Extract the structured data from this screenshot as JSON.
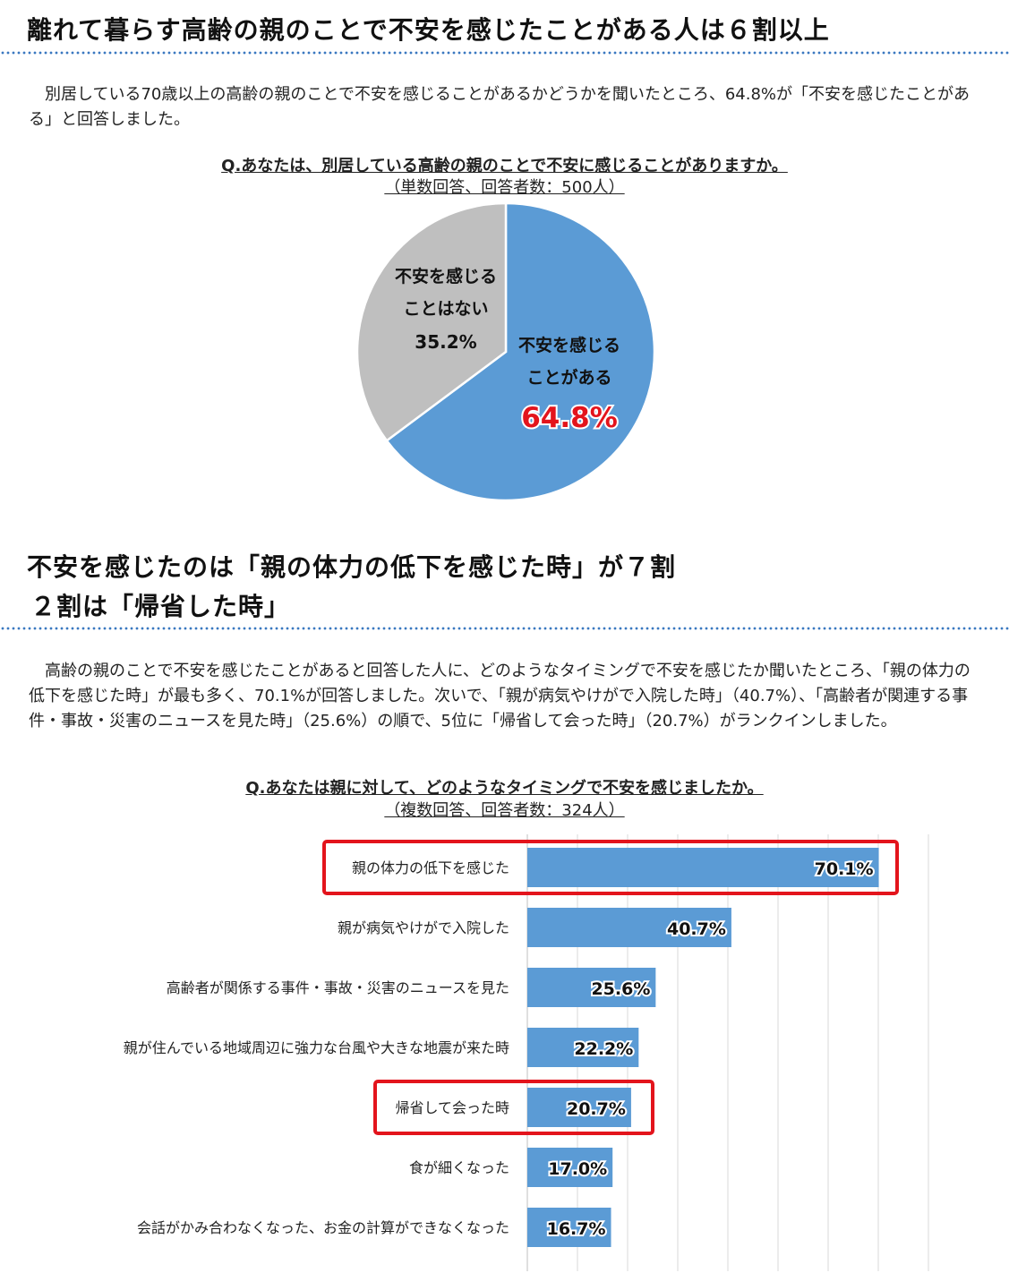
{
  "section1": {
    "heading": "離れて暮らす高齢の親のことで不安を感じたことがある人は６割以上",
    "paragraph": "別居している70歳以上の高齢の親のことで不安を感じることがあるかどうかを聞いたところ、64.8%が「不安を感じたことがある」と回答しました。",
    "question": "Q.あなたは、別居している高齢の親のことで不安に感じることがありますか。",
    "subnote": "（単数回答、回答者数：500人）"
  },
  "section2": {
    "heading_line1": "不安を感じたのは「親の体力の低下を感じた時」が７割",
    "heading_line2": "２割は「帰省した時」",
    "paragraph": "高齢の親のことで不安を感じたことがあると回答した人に、どのようなタイミングで不安を感じたか聞いたところ、「親の体力の低下を感じた時」が最も多く、70.1%が回答しました。次いで、「親が病気やけがで入院した時」（40.7%）、「高齢者が関連する事件・事故・災害のニュースを見た時」（25.6%）の順で、5位に「帰省して会った時」（20.7%）がランクインしました。",
    "question": "Q.あなたは親に対して、どのようなタイミングで不安を感じましたか。",
    "subnote": "（複数回答、回答者数：324人）"
  },
  "colors": {
    "blue": "#5b9bd5",
    "gray": "#bfbfbf",
    "red": "#e3141c",
    "grid": "#d9d9d9"
  },
  "chart_data": [
    {
      "type": "pie",
      "slices": [
        {
          "label": "不安を感じることがある",
          "label_lines": [
            "不安を感じる",
            "ことがある"
          ],
          "value": 64.8,
          "value_text": "64.8%",
          "color": "#5b9bd5"
        },
        {
          "label": "不安を感じることはない",
          "label_lines": [
            "不安を感じる",
            "ことはない"
          ],
          "value": 35.2,
          "value_text": "35.2%",
          "color": "#bfbfbf"
        }
      ]
    },
    {
      "type": "bar",
      "orientation": "horizontal",
      "xlim": [
        0,
        80
      ],
      "grid": true,
      "categories": [
        "親の体力の低下を感じた",
        "親が病気やけがで入院した",
        "高齢者が関係する事件・事故・災害のニュースを見た",
        "親が住んでいる地域周辺に強力な台風や大きな地震が来た時",
        "帰省して会った時",
        "食が細くなった",
        "会話がかみ合わなくなった、お金の計算ができなくなった"
      ],
      "values": [
        70.1,
        40.7,
        25.6,
        22.2,
        20.7,
        17.0,
        16.7
      ],
      "value_labels": [
        "70.1%",
        "40.7%",
        "25.6%",
        "22.2%",
        "20.7%",
        "17.0%",
        "16.7%"
      ],
      "highlighted": [
        0,
        4
      ]
    }
  ]
}
